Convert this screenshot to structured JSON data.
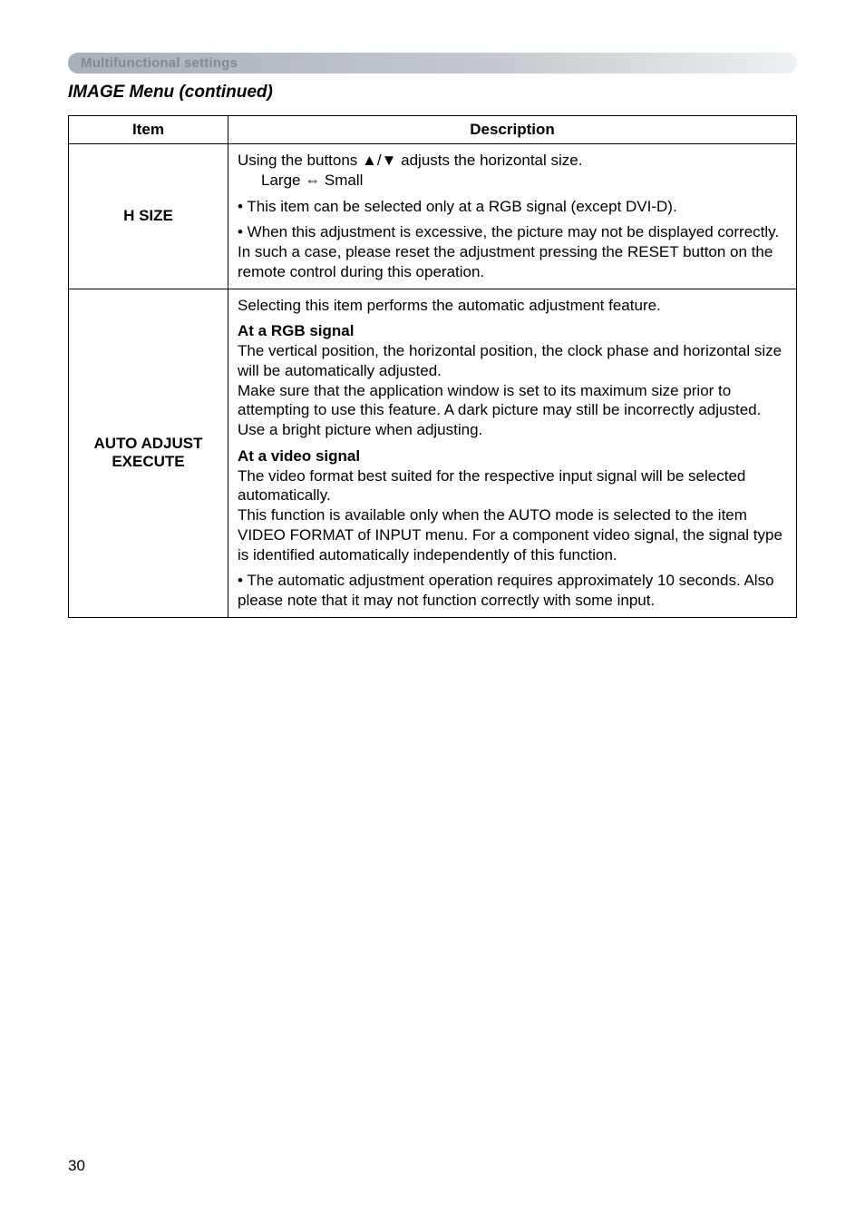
{
  "section_label": "Multifunctional settings",
  "menu_heading": "IMAGE Menu (continued)",
  "table": {
    "headers": {
      "item": "Item",
      "description": "Description"
    },
    "rows": [
      {
        "item": "H SIZE",
        "desc": {
          "line1": "Using the buttons ▲/▼ adjusts the horizontal size.",
          "line2": "Large ⇔ Small",
          "line3": "• This item can be selected only at a RGB signal (except DVI-D).",
          "line4": "• When this adjustment is excessive, the picture may not be displayed correctly. In such a case, please reset the adjustment pressing the RESET button on the remote control during this operation."
        }
      },
      {
        "item": "AUTO ADJUST EXECUTE",
        "desc": {
          "intro": "Selecting this item performs the automatic adjustment feature.",
          "rgb_head": "At a RGB signal",
          "rgb_body": "The vertical position, the horizontal position, the clock phase and horizontal size will be automatically adjusted.\nMake sure that the application window is set to its maximum size prior to attempting to use this feature. A dark picture may still be incorrectly adjusted. Use a bright picture when adjusting.",
          "vid_head": "At a video signal",
          "vid_body": "The video format best suited for the respective input signal will be selected automatically.\nThis function is available only when the AUTO mode is selected to the item VIDEO FORMAT of INPUT menu. For a component video signal, the signal type is identified automatically independently of this function.",
          "note": "• The automatic adjustment operation requires approximately 10 seconds. Also please note that it may not function correctly with some input."
        }
      }
    ]
  },
  "page_number": "30"
}
